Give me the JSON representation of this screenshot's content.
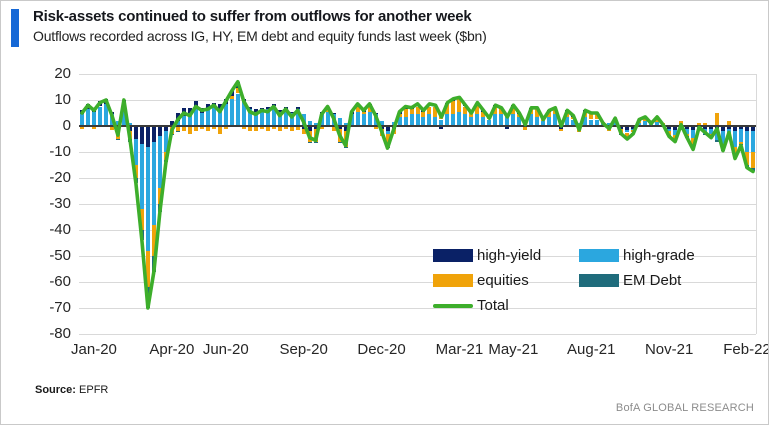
{
  "header": {
    "title": "Risk-assets continued to suffer from outflows for another week",
    "subtitle": "Outflows recorded across IG, HY, EM debt and equity funds last week ($bn)"
  },
  "accent_color": "#1568d6",
  "footer": {
    "source_label": "Source:",
    "source_value": "EPFR",
    "branding": "BofA GLOBAL RESEARCH"
  },
  "chart_data": {
    "type": "bar",
    "stacked": true,
    "overlay_line_series": "Total",
    "title": "Risk-assets continued to suffer from outflows for another week",
    "subtitle": "Outflows recorded across IG, HY, EM debt and equity funds last week ($bn)",
    "unit": "$bn",
    "frequency": "weekly",
    "ylim": [
      -80,
      20
    ],
    "y_ticks": [
      20,
      10,
      0,
      -10,
      -20,
      -30,
      -40,
      -50,
      -60,
      -70,
      -80
    ],
    "grid": true,
    "legend_position": "inside-bottom-right",
    "x_ticks": [
      {
        "label": "Jan-20",
        "index": 2
      },
      {
        "label": "Apr-20",
        "index": 15
      },
      {
        "label": "Jun-20",
        "index": 24
      },
      {
        "label": "Sep-20",
        "index": 37
      },
      {
        "label": "Dec-20",
        "index": 50
      },
      {
        "label": "Mar-21",
        "index": 63
      },
      {
        "label": "May-21",
        "index": 72
      },
      {
        "label": "Aug-21",
        "index": 85
      },
      {
        "label": "Nov-21",
        "index": 98
      },
      {
        "label": "Feb-22",
        "index": 111
      }
    ],
    "series": [
      {
        "name": "high-yield",
        "type": "bar",
        "color": "#0A2166",
        "values": [
          1.5,
          2,
          1.5,
          2,
          2,
          1,
          -1,
          2,
          -2,
          -5,
          -7,
          -8,
          -6,
          -4,
          -2,
          2,
          3,
          3,
          2,
          3,
          2,
          2,
          1.5,
          2,
          2,
          2,
          2.5,
          1,
          1,
          1,
          0.5,
          1,
          1,
          0.5,
          1,
          0.5,
          1,
          -1,
          -2,
          -1,
          1,
          1,
          0.5,
          -1,
          -2,
          1,
          1,
          0.5,
          1,
          0.5,
          -1,
          -2,
          -1,
          1,
          1,
          0.5,
          1,
          0.5,
          1,
          0.5,
          -1,
          0.5,
          1,
          0.5,
          0.5,
          -0.5,
          0.5,
          0.5,
          -0.5,
          0.5,
          0.5,
          -1,
          0.5,
          0.5,
          -0.5,
          0.5,
          0.5,
          -0.5,
          0.5,
          0.5,
          -1,
          0.5,
          0.5,
          -0.5,
          0.5,
          0.5,
          0.5,
          -0.5,
          -1,
          0.5,
          -1,
          -1.5,
          -1,
          0.5,
          0.5,
          -0.5,
          0.5,
          -0.5,
          -1,
          -1.5,
          -0.5,
          -1,
          -1.5,
          -0.5,
          -1,
          -1,
          -1.5,
          -2,
          -1,
          -2,
          -1,
          -2,
          -2
        ]
      },
      {
        "name": "high-grade",
        "type": "bar",
        "color": "#2BA7DF",
        "values": [
          4,
          6,
          5,
          7,
          8,
          4,
          2,
          7,
          1,
          -10,
          -25,
          -40,
          -32,
          -20,
          -8,
          0,
          2,
          4,
          5,
          6,
          5,
          6,
          7,
          6,
          8,
          10,
          12,
          9,
          6,
          5,
          6,
          6,
          7,
          5,
          6,
          5,
          6,
          4,
          2,
          1,
          4,
          5,
          4,
          3,
          1,
          4,
          5,
          4,
          5,
          4,
          2,
          -1,
          1,
          3,
          3,
          4,
          4,
          3,
          4,
          3,
          2,
          4,
          4,
          5,
          4,
          3,
          4,
          3,
          2,
          4,
          4,
          3,
          4,
          3,
          2,
          4,
          3,
          2,
          3,
          4,
          2,
          3,
          2,
          1,
          3,
          2,
          2,
          1,
          1,
          1,
          0.5,
          -1,
          -0.5,
          1,
          1.5,
          1,
          1,
          0.5,
          -1,
          -2,
          -1,
          -2,
          -3,
          -1,
          -2,
          -2,
          -4,
          -5,
          -3,
          -6,
          -5,
          -8,
          -8
        ]
      },
      {
        "name": "equities",
        "type": "bar",
        "color": "#F0A30A",
        "values": [
          -1,
          -0.5,
          -1,
          -0.5,
          -0.5,
          -1.5,
          -4,
          0.5,
          -3,
          -5,
          -8,
          -14,
          -12,
          -6,
          -3,
          -3,
          -2,
          -2,
          -3,
          -2,
          -1,
          -2,
          -1,
          -3,
          -1,
          1,
          2,
          -1,
          -2,
          -2,
          -1,
          -2,
          -1,
          -2,
          -1,
          -2,
          -1.5,
          -2,
          -4,
          -5,
          -1,
          1,
          -2,
          -5,
          -6,
          0,
          2,
          1,
          2,
          -1,
          -3,
          -5,
          -2,
          1,
          3,
          2,
          3,
          2,
          3,
          4,
          2,
          4,
          5,
          5,
          3,
          2,
          4,
          2,
          1,
          3,
          2,
          1,
          3,
          1,
          -1,
          2,
          3,
          1,
          2,
          2,
          -1,
          2,
          1,
          -2,
          2,
          2,
          2,
          0.5,
          -1,
          1,
          -2,
          -2,
          -1,
          1,
          1,
          0.5,
          1.5,
          0.5,
          -1.5,
          -2,
          2,
          -1,
          -4,
          1,
          1,
          -1,
          5,
          -2,
          2,
          -4,
          -1,
          -5,
          -6
        ]
      },
      {
        "name": "EM Debt",
        "type": "bar",
        "color": "#1F6C7C",
        "values": [
          0.5,
          0.5,
          0.5,
          0.5,
          0.5,
          0.5,
          -0.5,
          0.5,
          -1,
          -2,
          -4,
          -8,
          -6,
          -3,
          -1,
          -0.5,
          -0.5,
          0,
          0,
          0.5,
          0,
          0.5,
          0.5,
          0.5,
          0.5,
          0.5,
          0.5,
          0.5,
          0.5,
          0.5,
          0.5,
          0.5,
          0.5,
          0.5,
          0.5,
          0,
          0.5,
          0.5,
          -0.5,
          -0.5,
          0.5,
          0.5,
          0.5,
          -0.5,
          -0.5,
          0.5,
          0.5,
          0.5,
          0.5,
          0.5,
          0,
          -0.5,
          0.5,
          0.5,
          0.5,
          0.5,
          0.5,
          0.5,
          0.5,
          0.5,
          0.5,
          0.5,
          0.5,
          0.5,
          0.5,
          0.5,
          0.5,
          0.5,
          0.5,
          0.5,
          0.5,
          0.5,
          0.5,
          0.5,
          0,
          0.5,
          0.5,
          0,
          0.5,
          0.5,
          0,
          0.5,
          0.5,
          0,
          0.5,
          0.5,
          0.5,
          0,
          0,
          0.5,
          -0.5,
          -0.5,
          -0.5,
          0,
          0.5,
          0,
          0.5,
          0,
          -0.5,
          -0.5,
          0,
          -0.5,
          -0.5,
          0,
          -0.5,
          -0.5,
          -0.5,
          -0.5,
          -0.5,
          -0.5,
          -0.5,
          -1,
          -1.5
        ]
      },
      {
        "name": "Total",
        "type": "line",
        "color": "#3DAE2B",
        "values": [
          5,
          8,
          6,
          9,
          10,
          4,
          -3.5,
          10,
          -5,
          -22,
          -44,
          -70,
          -56,
          -33,
          -14,
          -1.5,
          2.5,
          5,
          4,
          7.5,
          6,
          6.5,
          8,
          5.5,
          9.5,
          13.5,
          17,
          9.5,
          5.5,
          4.5,
          6,
          5.5,
          7.5,
          4,
          6.5,
          3.5,
          6,
          1.5,
          -4.5,
          -5.5,
          4.5,
          7.5,
          3,
          -3.5,
          -7.5,
          5.5,
          8.5,
          6,
          8.5,
          4,
          -2,
          -8.5,
          -1.5,
          5.5,
          7.5,
          7,
          8.5,
          6,
          8.5,
          8,
          3.5,
          9,
          10.5,
          11,
          8,
          5,
          9,
          6,
          3,
          8,
          7,
          3.5,
          8,
          5,
          0.5,
          7,
          7,
          2.5,
          6,
          7,
          0,
          6,
          4,
          -1.5,
          6,
          5,
          5,
          1,
          -1,
          3,
          -3,
          -5,
          -3,
          2.5,
          3.5,
          1,
          3.5,
          0.5,
          -4,
          -6,
          0.5,
          -4.5,
          -9,
          -0.5,
          -2.5,
          -4.5,
          -1,
          -9.5,
          -2.5,
          -12.5,
          -7.5,
          -16,
          -17.5
        ]
      }
    ]
  }
}
